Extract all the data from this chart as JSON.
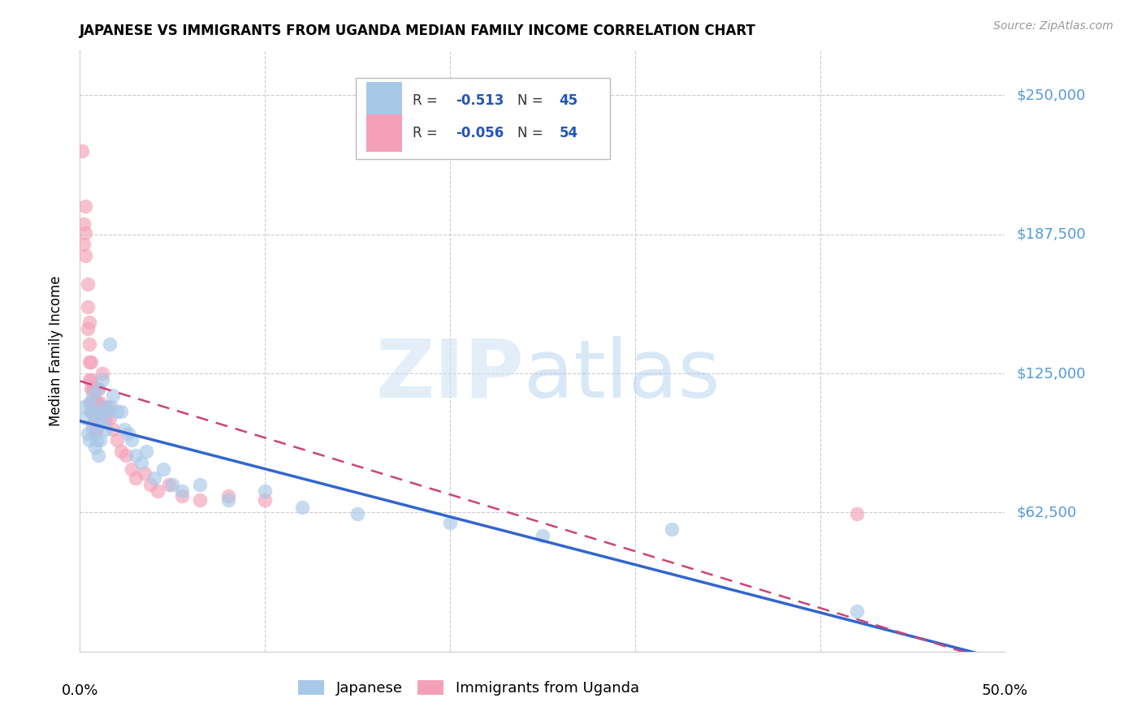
{
  "title": "JAPANESE VS IMMIGRANTS FROM UGANDA MEDIAN FAMILY INCOME CORRELATION CHART",
  "source": "Source: ZipAtlas.com",
  "ylabel": "Median Family Income",
  "yticks": [
    0,
    62500,
    125000,
    187500,
    250000
  ],
  "ytick_labels": [
    "",
    "$62,500",
    "$125,000",
    "$187,500",
    "$250,000"
  ],
  "xlim": [
    0.0,
    0.5
  ],
  "ylim": [
    0,
    270000
  ],
  "legend1_r": "-0.513",
  "legend1_n": "45",
  "legend2_r": "-0.056",
  "legend2_n": "54",
  "legend1_label": "Japanese",
  "legend2_label": "Immigrants from Uganda",
  "color_japanese": "#a8c8e8",
  "color_uganda": "#f4a0b8",
  "color_japanese_line": "#3366cc",
  "color_uganda_line": "#cc4477",
  "japanese_x": [
    0.002,
    0.003,
    0.004,
    0.005,
    0.005,
    0.006,
    0.007,
    0.007,
    0.008,
    0.008,
    0.009,
    0.009,
    0.01,
    0.01,
    0.011,
    0.011,
    0.012,
    0.012,
    0.013,
    0.014,
    0.015,
    0.016,
    0.017,
    0.018,
    0.02,
    0.022,
    0.024,
    0.026,
    0.028,
    0.03,
    0.033,
    0.036,
    0.04,
    0.045,
    0.05,
    0.055,
    0.065,
    0.08,
    0.1,
    0.12,
    0.15,
    0.2,
    0.25,
    0.32,
    0.42
  ],
  "japanese_y": [
    110000,
    105000,
    98000,
    112000,
    95000,
    108000,
    100000,
    115000,
    105000,
    92000,
    108000,
    95000,
    118000,
    88000,
    102000,
    95000,
    122000,
    105000,
    110000,
    100000,
    108000,
    138000,
    110000,
    115000,
    108000,
    108000,
    100000,
    98000,
    95000,
    88000,
    85000,
    90000,
    78000,
    82000,
    75000,
    72000,
    75000,
    68000,
    72000,
    65000,
    62000,
    58000,
    52000,
    55000,
    18000
  ],
  "uganda_x": [
    0.001,
    0.002,
    0.002,
    0.003,
    0.003,
    0.003,
    0.004,
    0.004,
    0.004,
    0.005,
    0.005,
    0.005,
    0.005,
    0.006,
    0.006,
    0.006,
    0.006,
    0.006,
    0.007,
    0.007,
    0.007,
    0.007,
    0.008,
    0.008,
    0.008,
    0.008,
    0.009,
    0.009,
    0.009,
    0.01,
    0.01,
    0.011,
    0.011,
    0.012,
    0.012,
    0.013,
    0.014,
    0.015,
    0.016,
    0.018,
    0.02,
    0.022,
    0.025,
    0.028,
    0.03,
    0.035,
    0.038,
    0.042,
    0.048,
    0.055,
    0.065,
    0.08,
    0.1,
    0.42
  ],
  "uganda_y": [
    225000,
    192000,
    183000,
    200000,
    188000,
    178000,
    165000,
    155000,
    145000,
    148000,
    138000,
    130000,
    122000,
    130000,
    122000,
    118000,
    112000,
    108000,
    118000,
    112000,
    108000,
    102000,
    118000,
    112000,
    105000,
    98000,
    112000,
    105000,
    100000,
    118000,
    110000,
    112000,
    105000,
    125000,
    110000,
    108000,
    105000,
    110000,
    105000,
    100000,
    95000,
    90000,
    88000,
    82000,
    78000,
    80000,
    75000,
    72000,
    75000,
    70000,
    68000,
    70000,
    68000,
    62000
  ]
}
